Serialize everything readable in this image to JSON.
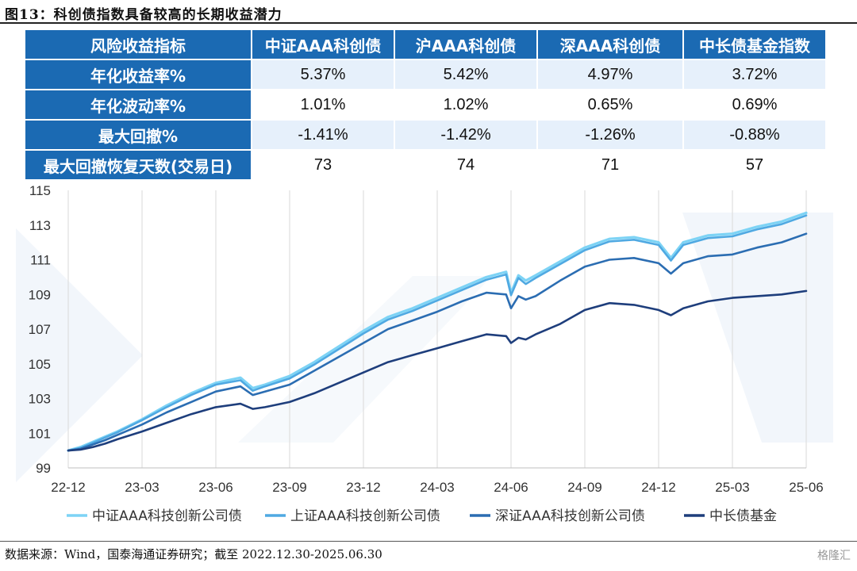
{
  "figure": {
    "title": "图13：科创债指数具备较高的长期收益潜力",
    "source": "数据来源：Wind，国泰海通证券研究；截至 2022.12.30-2025.06.30",
    "brand": "格隆汇"
  },
  "table": {
    "header": [
      "风险收益指标",
      "中证AAA科创债",
      "沪AAA科创债",
      "深AAA科创债",
      "中长债基金指数"
    ],
    "rows": [
      [
        "年化收益率%",
        "5.37%",
        "5.42%",
        "4.97%",
        "3.72%"
      ],
      [
        "年化波动率%",
        "1.01%",
        "1.02%",
        "0.65%",
        "0.69%"
      ],
      [
        "最大回撤%",
        "-1.41%",
        "-1.42%",
        "-1.26%",
        "-0.88%"
      ],
      [
        "最大回撤恢复天数(交易日)",
        "73",
        "74",
        "71",
        "57"
      ]
    ]
  },
  "chart_data": {
    "type": "line",
    "title": "",
    "xlabel": "",
    "ylabel": "",
    "ylim": [
      99,
      115
    ],
    "yticks": [
      99,
      101,
      103,
      105,
      107,
      109,
      111,
      113,
      115
    ],
    "xlim": [
      0,
      30
    ],
    "xticks": [
      "22-12",
      "23-03",
      "23-06",
      "23-09",
      "23-12",
      "24-03",
      "24-06",
      "24-09",
      "24-12",
      "25-03",
      "25-06"
    ],
    "grid": "vertical",
    "legend": "bottom",
    "x": [
      0,
      0.5,
      1,
      1.5,
      2,
      3,
      4,
      5,
      6,
      7,
      7.5,
      8,
      9,
      10,
      11,
      12,
      13,
      14,
      15,
      16,
      17,
      17.8,
      18,
      18.3,
      18.6,
      19,
      20,
      21,
      22,
      23,
      24,
      24.5,
      25,
      26,
      27,
      28,
      29,
      30
    ],
    "series": [
      {
        "name": "中证AAA科技创新公司债",
        "color": "#7dd3f5",
        "values": [
          100.0,
          100.2,
          100.5,
          100.8,
          101.1,
          101.8,
          102.6,
          103.3,
          103.9,
          104.2,
          103.6,
          103.8,
          104.3,
          105.1,
          106.0,
          106.9,
          107.7,
          108.2,
          108.8,
          109.4,
          110.0,
          110.3,
          109.1,
          110.1,
          109.8,
          110.1,
          110.9,
          111.7,
          112.2,
          112.3,
          112.0,
          111.1,
          112.0,
          112.4,
          112.5,
          112.9,
          113.2,
          113.7
        ]
      },
      {
        "name": "上证AAA科技创新公司债",
        "color": "#4fa9e2",
        "values": [
          100.0,
          100.15,
          100.45,
          100.75,
          101.05,
          101.75,
          102.5,
          103.2,
          103.8,
          104.05,
          103.45,
          103.7,
          104.15,
          104.95,
          105.85,
          106.75,
          107.55,
          108.05,
          108.65,
          109.25,
          109.85,
          110.15,
          108.95,
          109.95,
          109.6,
          109.95,
          110.75,
          111.55,
          112.05,
          112.15,
          111.85,
          110.95,
          111.85,
          112.25,
          112.35,
          112.75,
          113.05,
          113.55
        ]
      },
      {
        "name": "深证AAA科技创新公司债",
        "color": "#2b6db2",
        "values": [
          100.0,
          100.1,
          100.35,
          100.6,
          100.9,
          101.5,
          102.2,
          102.8,
          103.4,
          103.7,
          103.2,
          103.4,
          103.8,
          104.6,
          105.4,
          106.2,
          107.0,
          107.5,
          108.0,
          108.6,
          109.1,
          109.0,
          108.2,
          108.9,
          108.7,
          108.9,
          109.8,
          110.6,
          111.0,
          111.1,
          110.8,
          110.2,
          110.8,
          111.2,
          111.3,
          111.7,
          112.0,
          112.5
        ]
      },
      {
        "name": "中长债基金",
        "color": "#1e3e7c",
        "values": [
          100.0,
          100.05,
          100.2,
          100.4,
          100.65,
          101.1,
          101.6,
          102.1,
          102.5,
          102.7,
          102.4,
          102.5,
          102.8,
          103.3,
          103.9,
          104.5,
          105.1,
          105.5,
          105.9,
          106.3,
          106.7,
          106.6,
          106.2,
          106.5,
          106.4,
          106.7,
          107.3,
          108.1,
          108.5,
          108.4,
          108.1,
          107.8,
          108.2,
          108.6,
          108.8,
          108.9,
          109.0,
          109.2
        ]
      }
    ]
  }
}
